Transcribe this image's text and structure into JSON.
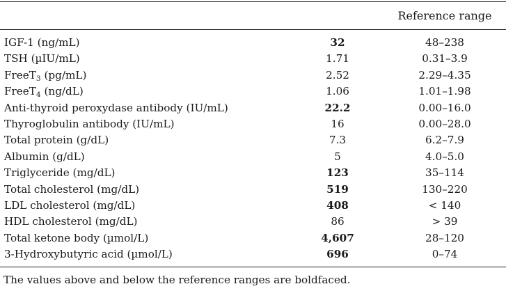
{
  "table": {
    "header": {
      "col1": "",
      "col2": "",
      "col3": "Reference range"
    },
    "rows": [
      {
        "label": "IGF-1 (ng/mL)",
        "value": "32",
        "bold": true,
        "ref": "48–238"
      },
      {
        "label": "TSH (µIU/mL)",
        "value": "1.71",
        "bold": false,
        "ref": "0.31–3.9"
      },
      {
        "label_pre": "FreeT",
        "label_sub": "3",
        "label_post": " (pg/mL)",
        "value": "2.52",
        "bold": false,
        "ref": "2.29–4.35"
      },
      {
        "label_pre": "FreeT",
        "label_sub": "4",
        "label_post": " (ng/dL)",
        "value": "1.06",
        "bold": false,
        "ref": "1.01–1.98"
      },
      {
        "label": "Anti-thyroid peroxydase antibody (IU/mL)",
        "value": "22.2",
        "bold": true,
        "ref": "0.00–16.0"
      },
      {
        "label": "Thyroglobulin antibody (IU/mL)",
        "value": "16",
        "bold": false,
        "ref": "0.00–28.0"
      },
      {
        "label": "Total protein (g/dL)",
        "value": "7.3",
        "bold": false,
        "ref": "6.2–7.9"
      },
      {
        "label": "Albumin (g/dL)",
        "value": "5",
        "bold": false,
        "ref": "4.0–5.0"
      },
      {
        "label": "Triglyceride (mg/dL)",
        "value": "123",
        "bold": true,
        "ref": "35–114"
      },
      {
        "label": "Total cholesterol (mg/dL)",
        "value": "519",
        "bold": true,
        "ref": "130–220"
      },
      {
        "label": "LDL cholesterol (mg/dL)",
        "value": "408",
        "bold": true,
        "ref": "< 140"
      },
      {
        "label": "HDL cholesterol (mg/dL)",
        "value": "86",
        "bold": false,
        "ref": "> 39"
      },
      {
        "label": "Total ketone body (µmol/L)",
        "value": "4,607",
        "bold": true,
        "ref": "28–120"
      },
      {
        "label": "3-Hydroxybutyric acid (µmol/L)",
        "value": "696",
        "bold": true,
        "ref": "0–74"
      }
    ],
    "footnote": "The values above and below the reference ranges are boldfaced."
  }
}
